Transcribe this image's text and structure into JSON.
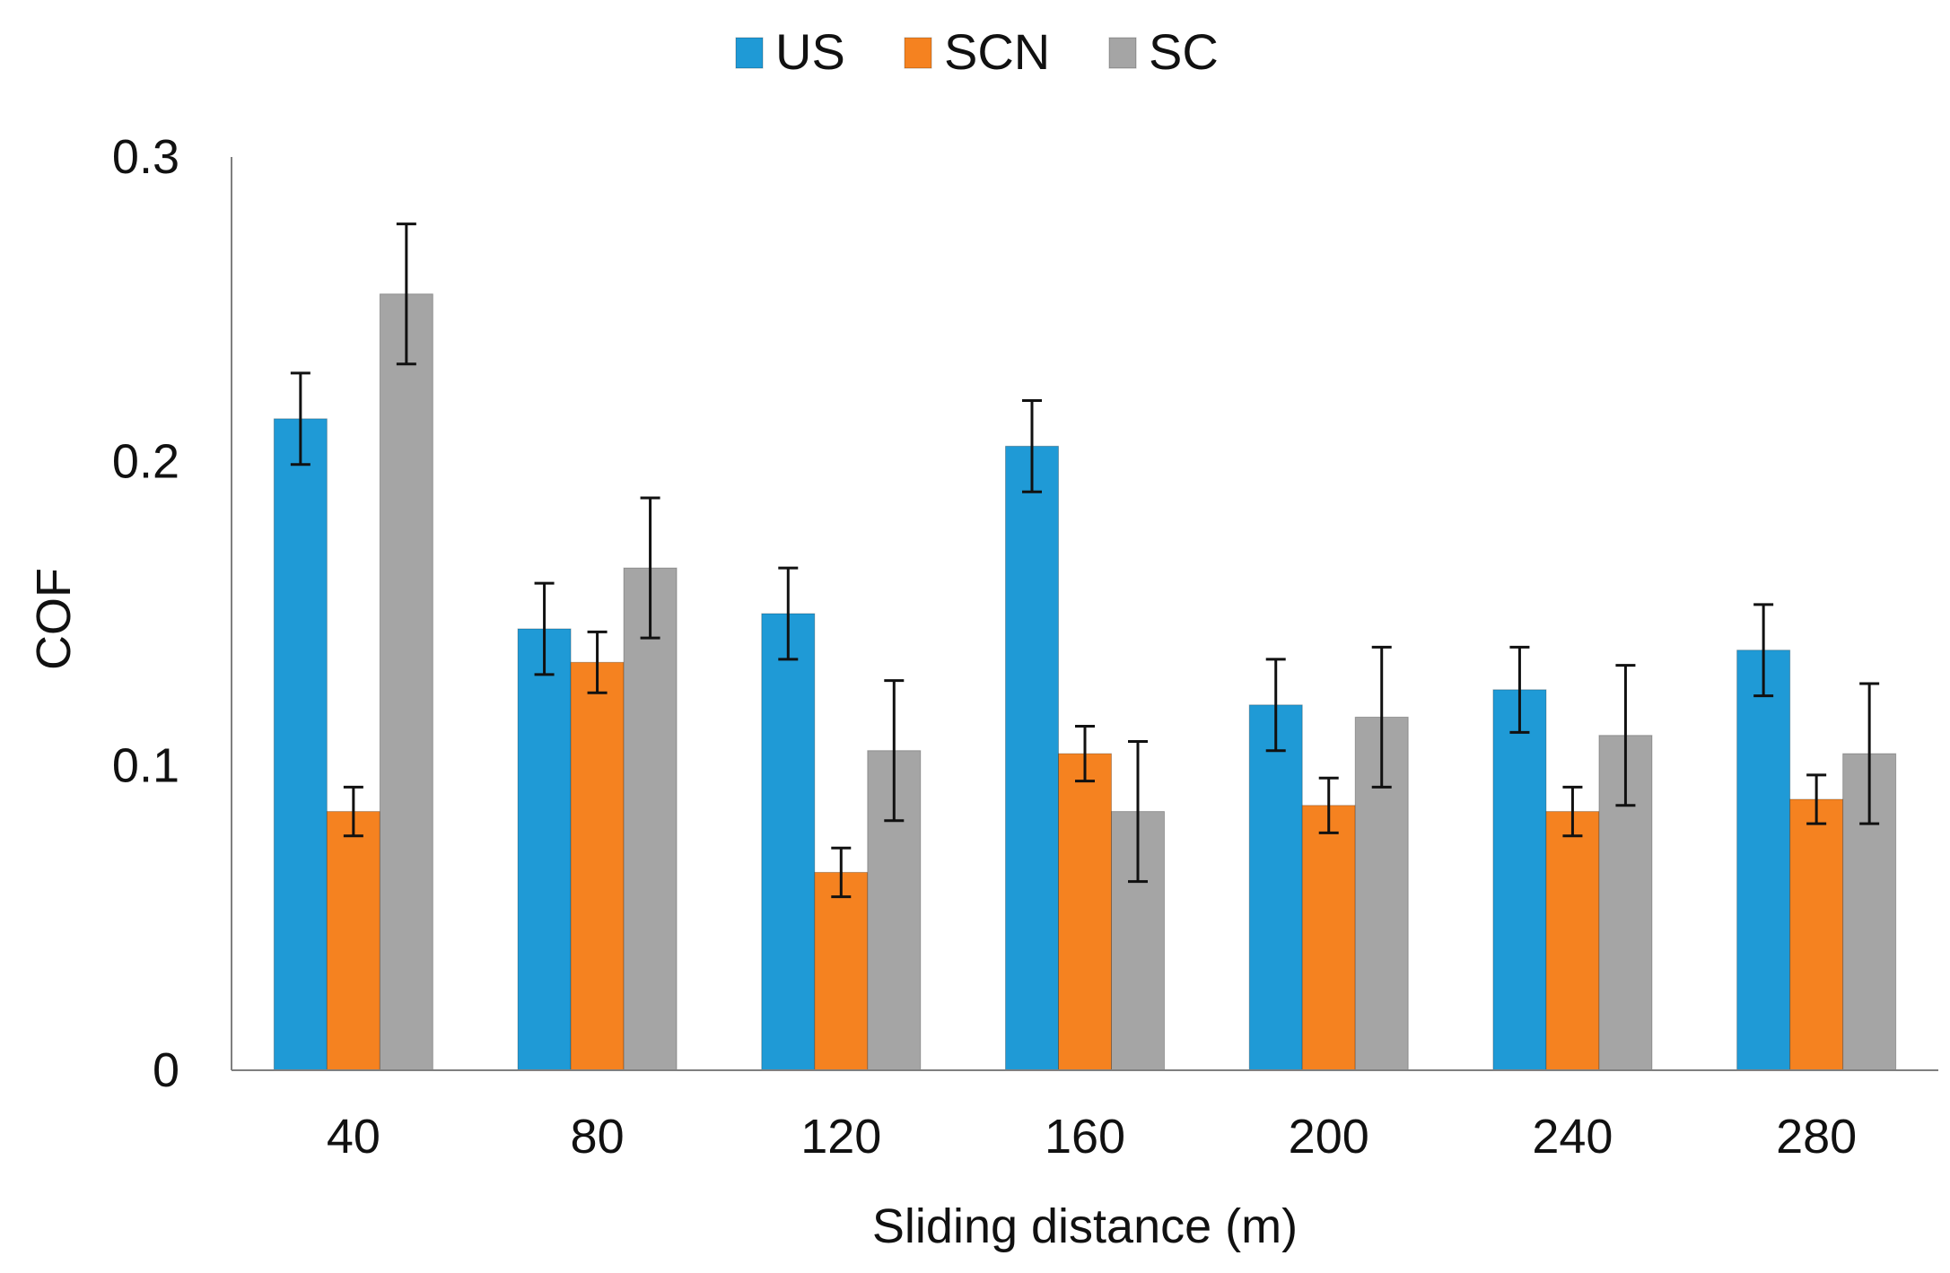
{
  "chart_data": {
    "type": "bar",
    "title": "",
    "xlabel": "Sliding distance (m)",
    "ylabel": "COF",
    "ylim": [
      0,
      0.3
    ],
    "yticks": [
      0,
      0.1,
      0.2,
      0.3
    ],
    "ytick_labels": [
      "0",
      "0.1",
      "0.2",
      "0.3"
    ],
    "categories": [
      "40",
      "80",
      "120",
      "160",
      "200",
      "240",
      "280"
    ],
    "legend_position": "top-center",
    "grid": false,
    "series": [
      {
        "name": "US",
        "color": "#1f9ad6",
        "values": [
          0.214,
          0.145,
          0.15,
          0.205,
          0.12,
          0.125,
          0.138
        ],
        "errors": [
          0.015,
          0.015,
          0.015,
          0.015,
          0.015,
          0.014,
          0.015
        ]
      },
      {
        "name": "SCN",
        "color": "#f58220",
        "values": [
          0.085,
          0.134,
          0.065,
          0.104,
          0.087,
          0.085,
          0.089
        ],
        "errors": [
          0.008,
          0.01,
          0.008,
          0.009,
          0.009,
          0.008,
          0.008
        ]
      },
      {
        "name": "SC",
        "color": "#a5a5a5",
        "values": [
          0.255,
          0.165,
          0.105,
          0.085,
          0.116,
          0.11,
          0.104
        ],
        "errors": [
          0.023,
          0.023,
          0.023,
          0.023,
          0.023,
          0.023,
          0.023
        ]
      }
    ]
  }
}
